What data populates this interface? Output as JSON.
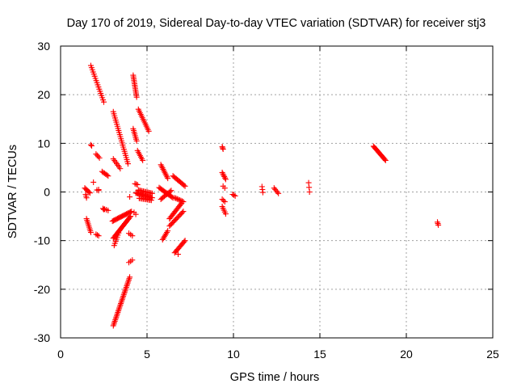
{
  "chart_data": {
    "type": "scatter",
    "title": "Day 170 of 2019, Sidereal Day-to-day VTEC variation (SDTVAR) for receiver stj3",
    "xlabel": "GPS time / hours",
    "ylabel": "SDTVAR / TECUs",
    "xlim": [
      0,
      25
    ],
    "ylim": [
      -30,
      30
    ],
    "xticks": [
      "0",
      "5",
      "10",
      "15",
      "20",
      "25"
    ],
    "yticks": [
      "-30",
      "-20",
      "-10",
      "0",
      "10",
      "20",
      "30"
    ],
    "grid": true,
    "marker": "+",
    "color": "#ff0000",
    "segments": [
      {
        "x0": 1.75,
        "y0": 26.0,
        "x1": 2.5,
        "y1": 18.5,
        "n": 18
      },
      {
        "x0": 1.75,
        "y0": 9.7,
        "x1": 1.8,
        "y1": 9.5,
        "n": 2
      },
      {
        "x0": 2.05,
        "y0": 7.8,
        "x1": 2.25,
        "y1": 7.0,
        "n": 4
      },
      {
        "x0": 2.4,
        "y0": 4.2,
        "x1": 2.75,
        "y1": 3.3,
        "n": 6
      },
      {
        "x0": 1.4,
        "y0": 0.8,
        "x1": 1.7,
        "y1": -0.2,
        "n": 6
      },
      {
        "x0": 1.45,
        "y0": -0.5,
        "x1": 1.5,
        "y1": -1.2,
        "n": 3
      },
      {
        "x0": 2.1,
        "y0": 0.4,
        "x1": 2.2,
        "y1": 0.3,
        "n": 2
      },
      {
        "x0": 1.5,
        "y0": -5.5,
        "x1": 1.75,
        "y1": -8.3,
        "n": 9
      },
      {
        "x0": 2.05,
        "y0": -8.7,
        "x1": 2.2,
        "y1": -9.0,
        "n": 3
      },
      {
        "x0": 2.45,
        "y0": -3.4,
        "x1": 2.75,
        "y1": -3.8,
        "n": 4
      },
      {
        "x0": 3.05,
        "y0": 16.5,
        "x1": 3.9,
        "y1": 5.8,
        "n": 26
      },
      {
        "x0": 3.05,
        "y0": 6.8,
        "x1": 3.45,
        "y1": 4.8,
        "n": 7
      },
      {
        "x0": 4.2,
        "y0": 24.0,
        "x1": 4.4,
        "y1": 19.5,
        "n": 14
      },
      {
        "x0": 4.5,
        "y0": 17.0,
        "x1": 5.1,
        "y1": 12.5,
        "n": 14
      },
      {
        "x0": 4.2,
        "y0": 13.0,
        "x1": 4.4,
        "y1": 10.5,
        "n": 8
      },
      {
        "x0": 4.45,
        "y0": 8.5,
        "x1": 4.75,
        "y1": 6.5,
        "n": 7
      },
      {
        "x0": 3.0,
        "y0": -6.0,
        "x1": 4.1,
        "y1": -4.0,
        "n": 20
      },
      {
        "x0": 3.05,
        "y0": -9.5,
        "x1": 4.05,
        "y1": -5.0,
        "n": 22
      },
      {
        "x0": 3.1,
        "y0": -11.0,
        "x1": 3.4,
        "y1": -8.0,
        "n": 8
      },
      {
        "x0": 3.05,
        "y0": -27.5,
        "x1": 4.0,
        "y1": -17.5,
        "n": 34
      },
      {
        "x0": 3.95,
        "y0": -14.5,
        "x1": 4.15,
        "y1": -14.0,
        "n": 3
      },
      {
        "x0": 3.95,
        "y0": -8.5,
        "x1": 4.15,
        "y1": -9.0,
        "n": 3
      },
      {
        "x0": 4.25,
        "y0": -4.2,
        "x1": 4.35,
        "y1": -4.6,
        "n": 2
      },
      {
        "x0": 4.3,
        "y0": 1.7,
        "x1": 4.45,
        "y1": 1.5,
        "n": 3
      },
      {
        "x0": 4.35,
        "y0": -0.2,
        "x1": 5.3,
        "y1": -1.2,
        "n": 18
      },
      {
        "x0": 4.5,
        "y0": 0.4,
        "x1": 5.3,
        "y1": -0.3,
        "n": 12
      },
      {
        "x0": 4.55,
        "y0": -1.3,
        "x1": 5.25,
        "y1": -1.7,
        "n": 10
      },
      {
        "x0": 5.8,
        "y0": 5.6,
        "x1": 6.2,
        "y1": 2.8,
        "n": 10
      },
      {
        "x0": 5.7,
        "y0": 0.9,
        "x1": 6.5,
        "y1": -1.2,
        "n": 14
      },
      {
        "x0": 5.8,
        "y0": -1.5,
        "x1": 6.4,
        "y1": 0.3,
        "n": 10
      },
      {
        "x0": 5.9,
        "y0": -9.8,
        "x1": 6.2,
        "y1": -8.0,
        "n": 7
      },
      {
        "x0": 6.3,
        "y0": -5.5,
        "x1": 7.0,
        "y1": -2.3,
        "n": 14
      },
      {
        "x0": 6.3,
        "y0": -7.0,
        "x1": 7.1,
        "y1": -4.0,
        "n": 14
      },
      {
        "x0": 6.5,
        "y0": 3.3,
        "x1": 7.2,
        "y1": 1.2,
        "n": 12
      },
      {
        "x0": 6.6,
        "y0": -1.2,
        "x1": 7.1,
        "y1": -2.0,
        "n": 8
      },
      {
        "x0": 6.6,
        "y0": -12.5,
        "x1": 7.2,
        "y1": -10.0,
        "n": 12
      },
      {
        "x0": 9.35,
        "y0": 9.3,
        "x1": 9.4,
        "y1": 8.8,
        "n": 3
      },
      {
        "x0": 9.35,
        "y0": 4.0,
        "x1": 9.55,
        "y1": 2.6,
        "n": 6
      },
      {
        "x0": 9.4,
        "y0": 1.2,
        "x1": 9.5,
        "y1": 0.8,
        "n": 2
      },
      {
        "x0": 9.35,
        "y0": -1.5,
        "x1": 9.5,
        "y1": -2.0,
        "n": 3
      },
      {
        "x0": 9.35,
        "y0": -3.0,
        "x1": 9.55,
        "y1": -4.5,
        "n": 5
      },
      {
        "x0": 9.95,
        "y0": -0.5,
        "x1": 10.1,
        "y1": -0.8,
        "n": 3
      },
      {
        "x0": 11.65,
        "y0": 1.1,
        "x1": 11.7,
        "y1": -0.1,
        "n": 3
      },
      {
        "x0": 12.35,
        "y0": 0.8,
        "x1": 12.6,
        "y1": -0.3,
        "n": 5
      },
      {
        "x0": 14.35,
        "y0": 1.9,
        "x1": 14.4,
        "y1": 0.0,
        "n": 3
      },
      {
        "x0": 18.1,
        "y0": 9.4,
        "x1": 18.8,
        "y1": 6.5,
        "n": 16
      },
      {
        "x0": 21.8,
        "y0": -6.2,
        "x1": 21.85,
        "y1": -6.8,
        "n": 3
      }
    ],
    "points": [
      [
        4.0,
        -1.0
      ],
      [
        2.2,
        0.5
      ],
      [
        2.5,
        -3.6
      ],
      [
        1.9,
        2.0
      ],
      [
        6.8,
        -12.8
      ]
    ]
  }
}
